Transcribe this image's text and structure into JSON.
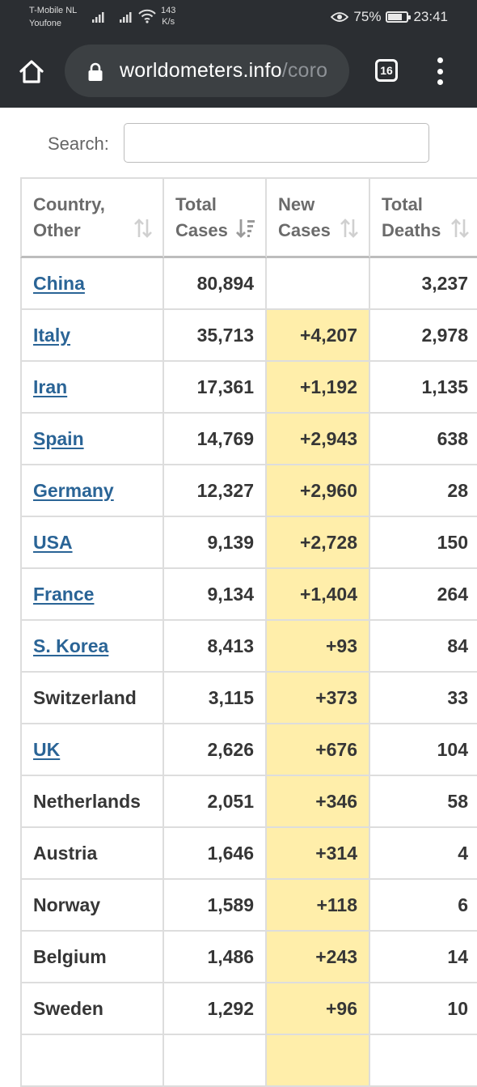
{
  "status_bar": {
    "carrier_line1": "T-Mobile  NL",
    "carrier_line2": "Youfone",
    "net_speed_value": "143",
    "net_speed_unit": "K/s",
    "battery_percent": "75%",
    "battery_level": 0.75,
    "time": "23:41"
  },
  "browser": {
    "url_main": "worldometers.info",
    "url_rest": "/coro",
    "tab_count": "16"
  },
  "search": {
    "label": "Search:",
    "value": "",
    "placeholder": ""
  },
  "table": {
    "columns": [
      {
        "line1": "Country,",
        "line2": "Other",
        "sort": "inactive"
      },
      {
        "line1": "Total",
        "line2": "Cases",
        "sort": "active"
      },
      {
        "line1": "New",
        "line2": "Cases",
        "sort": "inactive"
      },
      {
        "line1": "Total",
        "line2": "Deaths",
        "sort": "inactive"
      }
    ],
    "rows": [
      {
        "country": "China",
        "link": true,
        "total_cases": "80,894",
        "new_cases": "",
        "total_deaths": "3,237"
      },
      {
        "country": "Italy",
        "link": true,
        "total_cases": "35,713",
        "new_cases": "+4,207",
        "total_deaths": "2,978"
      },
      {
        "country": "Iran",
        "link": true,
        "total_cases": "17,361",
        "new_cases": "+1,192",
        "total_deaths": "1,135"
      },
      {
        "country": "Spain",
        "link": true,
        "total_cases": "14,769",
        "new_cases": "+2,943",
        "total_deaths": "638"
      },
      {
        "country": "Germany",
        "link": true,
        "total_cases": "12,327",
        "new_cases": "+2,960",
        "total_deaths": "28"
      },
      {
        "country": "USA",
        "link": true,
        "total_cases": "9,139",
        "new_cases": "+2,728",
        "total_deaths": "150"
      },
      {
        "country": "France",
        "link": true,
        "total_cases": "9,134",
        "new_cases": "+1,404",
        "total_deaths": "264"
      },
      {
        "country": "S. Korea",
        "link": true,
        "total_cases": "8,413",
        "new_cases": "+93",
        "total_deaths": "84"
      },
      {
        "country": "Switzerland",
        "link": false,
        "total_cases": "3,115",
        "new_cases": "+373",
        "total_deaths": "33"
      },
      {
        "country": "UK",
        "link": true,
        "total_cases": "2,626",
        "new_cases": "+676",
        "total_deaths": "104"
      },
      {
        "country": "Netherlands",
        "link": false,
        "total_cases": "2,051",
        "new_cases": "+346",
        "total_deaths": "58"
      },
      {
        "country": "Austria",
        "link": false,
        "total_cases": "1,646",
        "new_cases": "+314",
        "total_deaths": "4"
      },
      {
        "country": "Norway",
        "link": false,
        "total_cases": "1,589",
        "new_cases": "+118",
        "total_deaths": "6"
      },
      {
        "country": "Belgium",
        "link": false,
        "total_cases": "1,486",
        "new_cases": "+243",
        "total_deaths": "14"
      },
      {
        "country": "Sweden",
        "link": false,
        "total_cases": "1,292",
        "new_cases": "+96",
        "total_deaths": "10"
      }
    ]
  },
  "colors": {
    "chrome_bg": "#2b2e32",
    "url_pill_bg": "#3c4043",
    "link": "#2a6496",
    "new_cases_highlight": "#ffeeaa",
    "grid": "#dddddd"
  }
}
